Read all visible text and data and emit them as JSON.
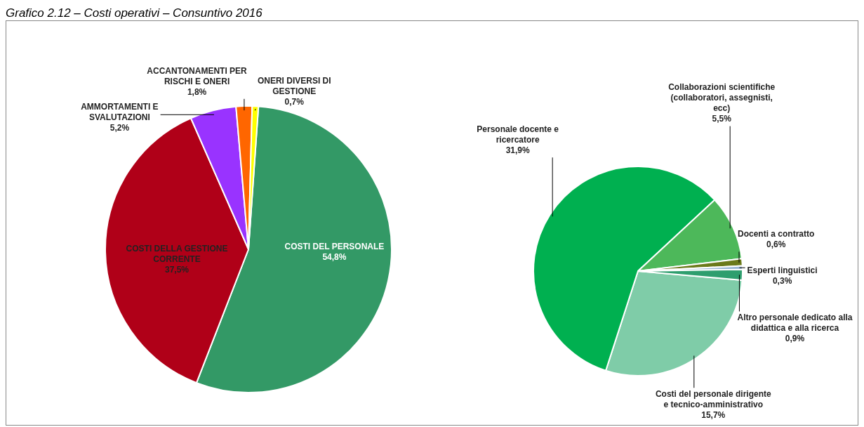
{
  "chart_data": [
    {
      "type": "pie",
      "title": "Grafico 2.12 – Costi operativi – Consuntivo 2016",
      "categories": [
        "COSTI DEL PERSONALE",
        "COSTI DELLA GESTIONE CORRENTE",
        "AMMORTAMENTI E SVALUTAZIONI",
        "ACCANTONAMENTI PER RISCHI E ONERI",
        "ONERI DIVERSI DI GESTIONE"
      ],
      "values": [
        54.8,
        37.5,
        5.2,
        1.8,
        0.7
      ],
      "value_labels": [
        "54,8%",
        "37,5%",
        "5,2%",
        "1,8%",
        "0,7%"
      ],
      "colors": [
        "#339966",
        "#b00018",
        "#9933ff",
        "#ff6600",
        "#ffff00"
      ],
      "legend": false
    },
    {
      "type": "pie",
      "categories": [
        "Costi del personale dirigente e tecnico-amministrativo",
        "Personale docente e ricercatore",
        "Collaborazioni scientifiche (collaboratori, assegnisti, ecc)",
        "Docenti a contratto",
        "Esperti linguistici",
        "Altro personale dedicato alla didattica e alla ricerca"
      ],
      "values": [
        15.7,
        31.9,
        5.5,
        0.6,
        0.3,
        0.9
      ],
      "value_labels": [
        "15,7%",
        "31,9%",
        "5,5%",
        "0,6%",
        "0,3%",
        "0,9%"
      ],
      "colors": [
        "#7fcca8",
        "#00b050",
        "#4db85a",
        "#6b7a1a",
        "#9bb7d4",
        "#2e9e6e"
      ],
      "legend": false
    }
  ]
}
